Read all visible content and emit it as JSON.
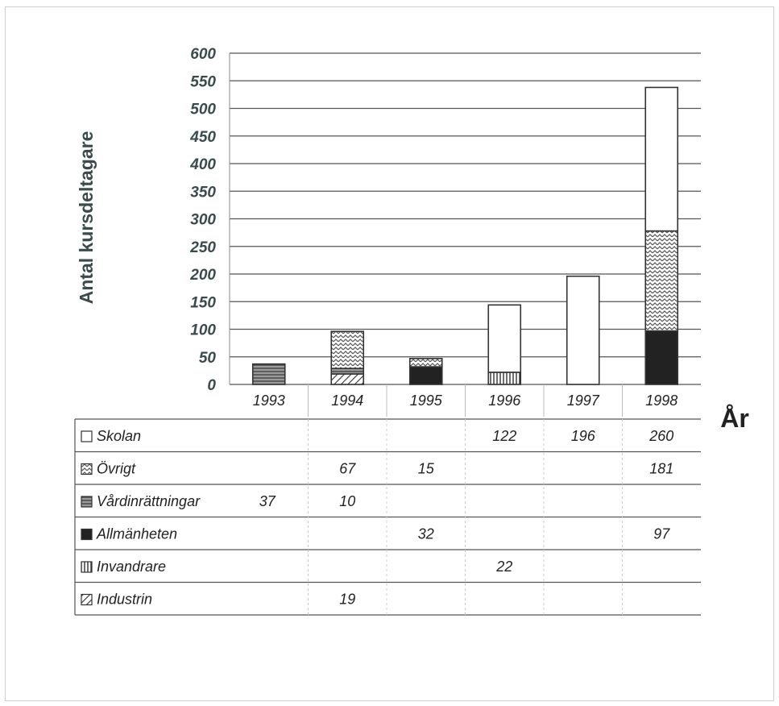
{
  "chart_data": {
    "type": "bar",
    "stacked": true,
    "ylabel": "Antal kursdeltagare",
    "xlabel": "År",
    "ylim": [
      0,
      600
    ],
    "yticks": [
      0,
      50,
      100,
      150,
      200,
      250,
      300,
      350,
      400,
      450,
      500,
      550,
      600
    ],
    "grid": true,
    "categories": [
      "1993",
      "1994",
      "1995",
      "1996",
      "1997",
      "1998"
    ],
    "series": [
      {
        "name": "Industrin",
        "values": [
          null,
          19,
          null,
          null,
          null,
          null
        ],
        "pattern": "diag-hatch"
      },
      {
        "name": "Invandrare",
        "values": [
          null,
          null,
          null,
          22,
          null,
          null
        ],
        "pattern": "vertical-hatch"
      },
      {
        "name": "Allmänheten",
        "values": [
          null,
          null,
          32,
          null,
          null,
          97
        ],
        "pattern": "solid-dark"
      },
      {
        "name": "Vårdinrättningar",
        "values": [
          37,
          10,
          null,
          null,
          null,
          null
        ],
        "pattern": "horizontal-hatch"
      },
      {
        "name": "Övrigt",
        "values": [
          null,
          67,
          15,
          null,
          null,
          181
        ],
        "pattern": "dotted-hatch"
      },
      {
        "name": "Skolan",
        "values": [
          null,
          null,
          null,
          122,
          196,
          260
        ],
        "pattern": "white"
      }
    ],
    "table_row_order": [
      "Skolan",
      "Övrigt",
      "Vårdinrättningar",
      "Allmänheten",
      "Invandrare",
      "Industrin"
    ],
    "legend_placement": "data-table-below"
  },
  "colors": {
    "axis_text": "#3b4a4a",
    "bar_stroke": "#333333",
    "grid": "#555555",
    "solid_dark": "#222222"
  }
}
